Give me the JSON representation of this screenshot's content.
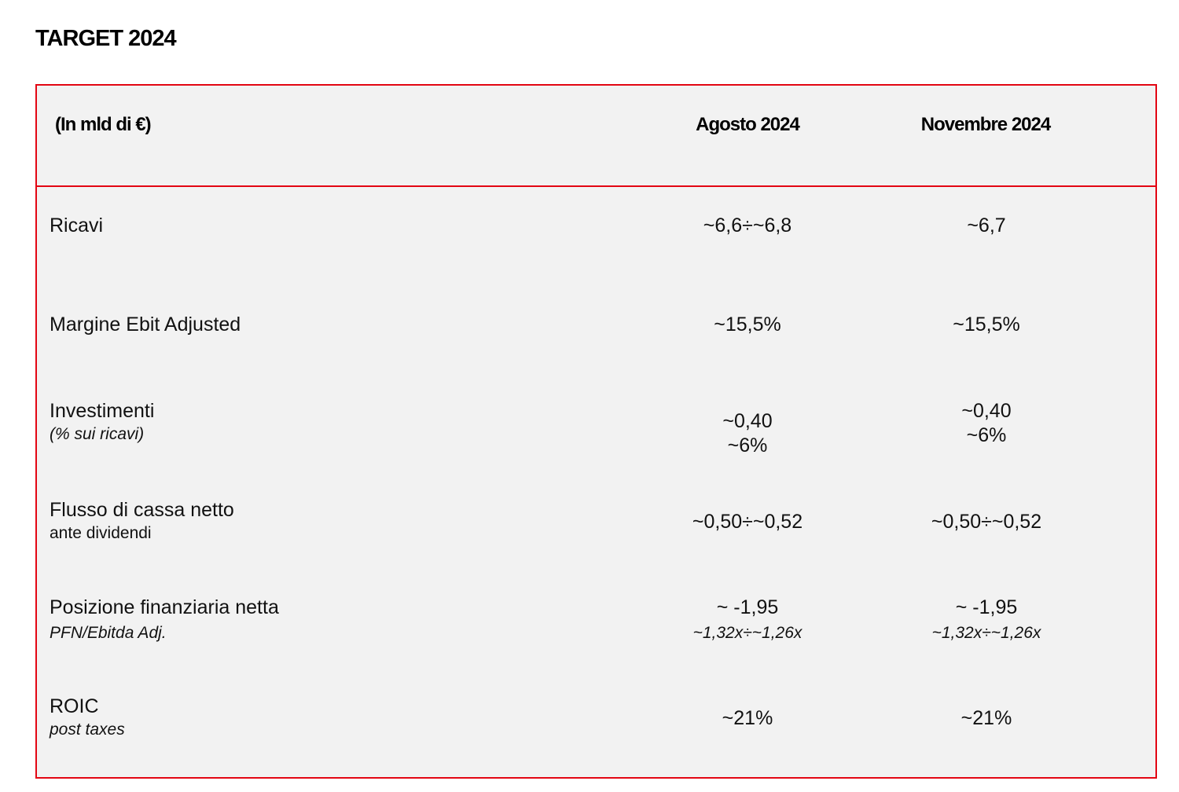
{
  "title": "TARGET 2024",
  "table": {
    "header": {
      "unit": "(In mld di €)",
      "col1": "Agosto 2024",
      "col2": "Novembre 2024"
    },
    "rows": [
      {
        "label": "Ricavi",
        "sublabel": "",
        "agosto": [
          "~6,6÷~6,8"
        ],
        "novembre": [
          "~6,7"
        ]
      },
      {
        "label": "Margine Ebit Adjusted",
        "sublabel": "",
        "agosto": [
          "~15,5%"
        ],
        "novembre": [
          "~15,5%"
        ]
      },
      {
        "label": "Investimenti",
        "sublabel": "(% sui ricavi)",
        "agosto": [
          "~0,40",
          "~6%"
        ],
        "novembre": [
          "~0,40",
          "~6%"
        ]
      },
      {
        "label": "Flusso di cassa netto",
        "sublabel": "ante dividendi",
        "agosto": [
          "~0,50÷~0,52"
        ],
        "novembre": [
          "~0,50÷~0,52"
        ]
      },
      {
        "label": "Posizione finanziaria netta",
        "sublabel": "PFN/Ebitda Adj.",
        "agosto": [
          "~ -1,95",
          "~1,32x÷~1,26x"
        ],
        "novembre": [
          "~ -1,95",
          "~1,32x÷~1,26x"
        ]
      },
      {
        "label": "ROIC",
        "sublabel": "post taxes",
        "agosto": [
          "~21%"
        ],
        "novembre": [
          "~21%"
        ]
      }
    ]
  },
  "colors": {
    "border": "#e30613",
    "background": "#f2f2f2"
  }
}
